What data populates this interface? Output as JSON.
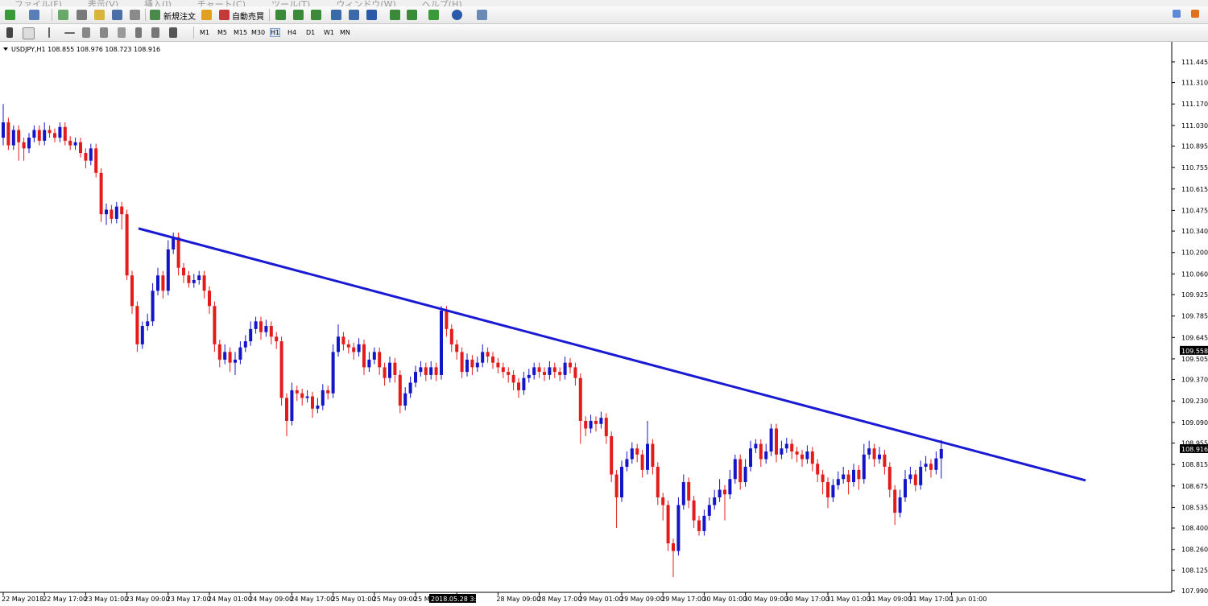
{
  "menu": [
    "ファイル(F)",
    "表示(V)",
    "挿入(I)",
    "チャート(C)",
    "ツール(T)",
    "ウィンドウ(W)",
    "ヘルプ(H)"
  ],
  "toolbar": {
    "new_order": "新規注文",
    "auto_trade": "自動売買"
  },
  "timeframes": [
    "M1",
    "M5",
    "M15",
    "M30",
    "H1",
    "H4",
    "D1",
    "W1",
    "MN"
  ],
  "chart_data": {
    "type": "candlestick",
    "title": "USDJPY,H1 108.855 108.976 108.723 108.916",
    "up_color": "#1414c8",
    "down_color": "#e41b1b",
    "ylim": [
      107.98,
      111.576
    ],
    "yticks": [
      111.445,
      {
        "value": 111.31,
        "label": "111.310"
      },
      {
        "value": 111.17,
        "label": "111.170"
      },
      {
        "value": 111.03,
        "label": "111.030"
      },
      110.895,
      110.755,
      110.615,
      110.475,
      {
        "value": 110.34,
        "label": "110.340"
      },
      {
        "value": 110.2,
        "label": "110.200"
      },
      {
        "value": 110.06,
        "label": "110.060"
      },
      109.925,
      109.785,
      109.645,
      109.505,
      {
        "value": 109.37,
        "label": "109.370"
      },
      {
        "value": 109.23,
        "label": "109.230"
      },
      {
        "value": 109.09,
        "label": "109.090"
      },
      108.955,
      108.815,
      108.675,
      108.535,
      {
        "value": 108.4,
        "label": "108.400"
      },
      {
        "value": 108.26,
        "label": "108.260"
      },
      108.125,
      {
        "value": 107.99,
        "label": "107.990"
      }
    ],
    "x_labels": [
      "22 May 2018",
      "22 May 17:00",
      "23 May 01:00",
      "23 May 09:00",
      "23 May 17:00",
      "24 May 01:00",
      "24 May 09:00",
      "24 May 17:00",
      "25 May 01:00",
      "25 May 09:00",
      "25 May 1",
      null,
      "28 May 09:00",
      "28 May 17:00",
      "29 May 01:00",
      "29 May 09:00",
      "29 May 17:00",
      "30 May 01:00",
      "30 May 09:00",
      "30 May 17:00",
      "31 May 01:00",
      "31 May 09:00",
      "31 May 17:00",
      "1 Jun 01:00"
    ],
    "crosshair": {
      "price": 109.558,
      "time_label": "2018.05.28 3:00"
    },
    "trendline": {
      "x": [
        26.25,
        210
      ],
      "values": [
        110.357,
        108.711
      ],
      "color": "#1a1ad2"
    },
    "candles": [
      [
        110.95,
        111.17,
        110.9,
        111.05
      ],
      [
        111.05,
        111.08,
        110.87,
        110.9
      ],
      [
        110.9,
        111.03,
        110.87,
        111.0
      ],
      [
        111.0,
        111.03,
        110.8,
        110.92
      ],
      [
        110.92,
        110.95,
        110.8,
        110.88
      ],
      [
        110.88,
        110.98,
        110.85,
        110.95
      ],
      [
        110.95,
        111.03,
        110.92,
        111.0
      ],
      [
        111.0,
        111.03,
        110.9,
        110.93
      ],
      [
        110.93,
        111.05,
        110.9,
        111.0
      ],
      [
        111.0,
        111.03,
        110.95,
        110.98
      ],
      [
        110.98,
        111.01,
        110.92,
        110.95
      ],
      [
        110.95,
        111.05,
        110.92,
        111.02
      ],
      [
        111.02,
        111.05,
        110.9,
        110.93
      ],
      [
        110.93,
        110.96,
        110.87,
        110.9
      ],
      [
        110.9,
        110.95,
        110.87,
        110.92
      ],
      [
        110.92,
        110.95,
        110.82,
        110.85
      ],
      [
        110.85,
        110.88,
        110.75,
        110.8
      ],
      [
        110.8,
        110.91,
        110.77,
        110.88
      ],
      [
        110.88,
        110.91,
        110.69,
        110.72
      ],
      [
        110.72,
        110.75,
        110.4,
        110.45
      ],
      [
        110.45,
        110.52,
        110.38,
        110.48
      ],
      [
        110.48,
        110.51,
        110.39,
        110.42
      ],
      [
        110.42,
        110.53,
        110.39,
        110.5
      ],
      [
        110.5,
        110.53,
        110.35,
        110.45
      ],
      [
        110.45,
        110.48,
        110.02,
        110.05
      ],
      [
        110.05,
        110.08,
        109.8,
        109.85
      ],
      [
        109.85,
        109.88,
        109.55,
        109.6
      ],
      [
        109.6,
        109.75,
        109.57,
        109.72
      ],
      [
        109.72,
        109.8,
        109.69,
        109.75
      ],
      [
        109.75,
        110.0,
        109.72,
        109.95
      ],
      [
        109.95,
        110.1,
        109.92,
        110.05
      ],
      [
        110.05,
        110.08,
        109.9,
        109.95
      ],
      [
        109.95,
        110.28,
        109.92,
        110.22
      ],
      [
        110.22,
        110.33,
        110.19,
        110.3
      ],
      [
        110.3,
        110.33,
        110.05,
        110.1
      ],
      [
        110.1,
        110.13,
        110.0,
        110.05
      ],
      [
        110.05,
        110.08,
        109.97,
        110.0
      ],
      [
        110.0,
        110.06,
        109.97,
        110.02
      ],
      [
        110.02,
        110.08,
        109.99,
        110.05
      ],
      [
        110.05,
        110.08,
        109.9,
        109.95
      ],
      [
        109.95,
        109.98,
        109.8,
        109.85
      ],
      [
        109.85,
        109.88,
        109.55,
        109.6
      ],
      [
        109.6,
        109.63,
        109.45,
        109.5
      ],
      [
        109.5,
        109.6,
        109.47,
        109.55
      ],
      [
        109.55,
        109.58,
        109.42,
        109.48
      ],
      [
        109.48,
        109.55,
        109.4,
        109.5
      ],
      [
        109.5,
        109.62,
        109.47,
        109.58
      ],
      [
        109.58,
        109.66,
        109.55,
        109.62
      ],
      [
        109.62,
        109.75,
        109.59,
        109.7
      ],
      [
        109.7,
        109.78,
        109.67,
        109.75
      ],
      [
        109.75,
        109.78,
        109.63,
        109.68
      ],
      [
        109.68,
        109.76,
        109.65,
        109.72
      ],
      [
        109.72,
        109.75,
        109.6,
        109.65
      ],
      [
        109.65,
        109.68,
        109.57,
        109.62
      ],
      [
        109.62,
        109.65,
        109.2,
        109.25
      ],
      [
        109.25,
        109.28,
        109.0,
        109.1
      ],
      [
        109.1,
        109.35,
        109.07,
        109.3
      ],
      [
        109.3,
        109.33,
        109.23,
        109.28
      ],
      [
        109.28,
        109.31,
        109.2,
        109.25
      ],
      [
        109.25,
        109.3,
        109.22,
        109.26
      ],
      [
        109.26,
        109.29,
        109.12,
        109.18
      ],
      [
        109.18,
        109.25,
        109.15,
        109.2
      ],
      [
        109.2,
        109.34,
        109.17,
        109.3
      ],
      [
        109.3,
        109.33,
        109.24,
        109.28
      ],
      [
        109.28,
        109.6,
        109.25,
        109.55
      ],
      [
        109.55,
        109.73,
        109.52,
        109.65
      ],
      [
        109.65,
        109.68,
        109.56,
        109.6
      ],
      [
        109.6,
        109.63,
        109.54,
        109.58
      ],
      [
        109.58,
        109.61,
        109.5,
        109.55
      ],
      [
        109.55,
        109.64,
        109.52,
        109.6
      ],
      [
        109.6,
        109.63,
        109.4,
        109.45
      ],
      [
        109.45,
        109.55,
        109.42,
        109.5
      ],
      [
        109.5,
        109.58,
        109.47,
        109.55
      ],
      [
        109.55,
        109.58,
        109.4,
        109.45
      ],
      [
        109.45,
        109.48,
        109.33,
        109.38
      ],
      [
        109.38,
        109.52,
        109.35,
        109.48
      ],
      [
        109.48,
        109.51,
        109.35,
        109.4
      ],
      [
        109.4,
        109.43,
        109.15,
        109.2
      ],
      [
        109.2,
        109.32,
        109.17,
        109.28
      ],
      [
        109.28,
        109.39,
        109.25,
        109.35
      ],
      [
        109.35,
        109.46,
        109.32,
        109.42
      ],
      [
        109.42,
        109.49,
        109.39,
        109.45
      ],
      [
        109.45,
        109.48,
        109.36,
        109.4
      ],
      [
        109.4,
        109.49,
        109.37,
        109.45
      ],
      [
        109.45,
        109.48,
        109.36,
        109.4
      ],
      [
        109.4,
        109.85,
        109.37,
        109.82
      ],
      [
        109.82,
        109.85,
        109.65,
        109.7
      ],
      [
        109.7,
        109.73,
        109.55,
        109.6
      ],
      [
        109.6,
        109.63,
        109.5,
        109.55
      ],
      [
        109.55,
        109.58,
        109.38,
        109.42
      ],
      [
        109.42,
        109.54,
        109.39,
        109.5
      ],
      [
        109.5,
        109.53,
        109.4,
        109.45
      ],
      [
        109.45,
        109.52,
        109.42,
        109.48
      ],
      [
        109.48,
        109.6,
        109.45,
        109.55
      ],
      [
        109.55,
        109.58,
        109.48,
        109.52
      ],
      [
        109.52,
        109.55,
        109.44,
        109.48
      ],
      [
        109.48,
        109.51,
        109.41,
        109.45
      ],
      [
        109.45,
        109.48,
        109.38,
        109.42
      ],
      [
        109.42,
        109.45,
        109.35,
        109.4
      ],
      [
        109.4,
        109.43,
        109.3,
        109.35
      ],
      [
        109.35,
        109.38,
        109.25,
        109.3
      ],
      [
        109.3,
        109.42,
        109.27,
        109.38
      ],
      [
        109.38,
        109.44,
        109.35,
        109.4
      ],
      [
        109.4,
        109.48,
        109.37,
        109.45
      ],
      [
        109.45,
        109.48,
        109.38,
        109.42
      ],
      [
        109.42,
        109.45,
        109.36,
        109.4
      ],
      [
        109.4,
        109.49,
        109.37,
        109.45
      ],
      [
        109.45,
        109.48,
        109.38,
        109.42
      ],
      [
        109.42,
        109.45,
        109.36,
        109.4
      ],
      [
        109.4,
        109.52,
        109.37,
        109.48
      ],
      [
        109.48,
        109.51,
        109.41,
        109.45
      ],
      [
        109.45,
        109.48,
        109.33,
        109.38
      ],
      [
        109.38,
        109.41,
        108.95,
        109.1
      ],
      [
        109.1,
        109.13,
        109.0,
        109.05
      ],
      [
        109.05,
        109.14,
        109.02,
        109.1
      ],
      [
        109.1,
        109.13,
        109.03,
        109.08
      ],
      [
        109.08,
        109.16,
        109.05,
        109.12
      ],
      [
        109.12,
        109.15,
        108.95,
        109.0
      ],
      [
        109.0,
        109.03,
        108.7,
        108.75
      ],
      [
        108.75,
        108.78,
        108.4,
        108.6
      ],
      [
        108.6,
        108.84,
        108.57,
        108.8
      ],
      [
        108.8,
        108.9,
        108.77,
        108.85
      ],
      [
        108.85,
        108.96,
        108.82,
        108.92
      ],
      [
        108.92,
        108.95,
        108.83,
        108.88
      ],
      [
        108.88,
        108.91,
        108.73,
        108.78
      ],
      [
        108.78,
        109.1,
        108.75,
        108.95
      ],
      [
        108.95,
        108.98,
        108.75,
        108.8
      ],
      [
        108.8,
        108.83,
        108.55,
        108.6
      ],
      [
        108.6,
        108.63,
        108.45,
        108.55
      ],
      [
        108.55,
        108.58,
        108.25,
        108.3
      ],
      [
        108.3,
        108.33,
        108.08,
        108.25
      ],
      [
        108.25,
        108.6,
        108.22,
        108.55
      ],
      [
        108.55,
        108.75,
        108.52,
        108.7
      ],
      [
        108.7,
        108.73,
        108.53,
        108.58
      ],
      [
        108.58,
        108.61,
        108.4,
        108.45
      ],
      [
        108.45,
        108.48,
        108.35,
        108.38
      ],
      [
        108.38,
        108.52,
        108.35,
        108.48
      ],
      [
        108.48,
        108.6,
        108.45,
        108.55
      ],
      [
        108.55,
        108.65,
        108.52,
        108.6
      ],
      [
        108.6,
        108.72,
        108.57,
        108.65
      ],
      [
        108.65,
        108.68,
        108.45,
        108.62
      ],
      [
        108.62,
        108.78,
        108.59,
        108.72
      ],
      [
        108.72,
        108.88,
        108.69,
        108.85
      ],
      [
        108.85,
        108.88,
        108.65,
        108.7
      ],
      [
        108.7,
        108.85,
        108.67,
        108.8
      ],
      [
        108.8,
        108.97,
        108.77,
        108.92
      ],
      [
        108.92,
        108.98,
        108.89,
        108.95
      ],
      [
        108.95,
        108.98,
        108.8,
        108.85
      ],
      [
        108.85,
        108.95,
        108.82,
        108.9
      ],
      [
        108.9,
        109.08,
        108.87,
        109.05
      ],
      [
        109.05,
        109.08,
        108.83,
        108.88
      ],
      [
        108.88,
        108.97,
        108.85,
        108.92
      ],
      [
        108.92,
        108.99,
        108.89,
        108.95
      ],
      [
        108.95,
        108.98,
        108.85,
        108.9
      ],
      [
        108.9,
        108.93,
        108.83,
        108.88
      ],
      [
        108.88,
        108.91,
        108.8,
        108.85
      ],
      [
        108.85,
        108.94,
        108.82,
        108.9
      ],
      [
        108.9,
        108.93,
        108.77,
        108.82
      ],
      [
        108.82,
        108.85,
        108.7,
        108.75
      ],
      [
        108.75,
        108.78,
        108.62,
        108.7
      ],
      [
        108.7,
        108.73,
        108.53,
        108.6
      ],
      [
        108.6,
        108.72,
        108.57,
        108.68
      ],
      [
        108.68,
        108.77,
        108.65,
        108.72
      ],
      [
        108.72,
        108.8,
        108.69,
        108.75
      ],
      [
        108.75,
        108.78,
        108.62,
        108.7
      ],
      [
        108.7,
        108.82,
        108.67,
        108.78
      ],
      [
        108.78,
        108.81,
        108.65,
        108.72
      ],
      [
        108.72,
        108.95,
        108.69,
        108.88
      ],
      [
        108.88,
        108.97,
        108.85,
        108.92
      ],
      [
        108.92,
        108.95,
        108.8,
        108.85
      ],
      [
        108.85,
        108.93,
        108.82,
        108.88
      ],
      [
        108.88,
        108.91,
        108.75,
        108.8
      ],
      [
        108.8,
        108.83,
        108.6,
        108.65
      ],
      [
        108.65,
        108.68,
        108.42,
        108.5
      ],
      [
        108.5,
        108.65,
        108.47,
        108.6
      ],
      [
        108.6,
        108.78,
        108.57,
        108.72
      ],
      [
        108.72,
        108.8,
        108.69,
        108.75
      ],
      [
        108.75,
        108.78,
        108.64,
        108.68
      ],
      [
        108.68,
        108.84,
        108.65,
        108.8
      ],
      [
        108.8,
        108.87,
        108.77,
        108.82
      ],
      [
        108.82,
        108.85,
        108.73,
        108.78
      ],
      [
        108.78,
        108.9,
        108.75,
        108.855
      ],
      [
        108.855,
        108.976,
        108.723,
        108.916
      ]
    ]
  }
}
